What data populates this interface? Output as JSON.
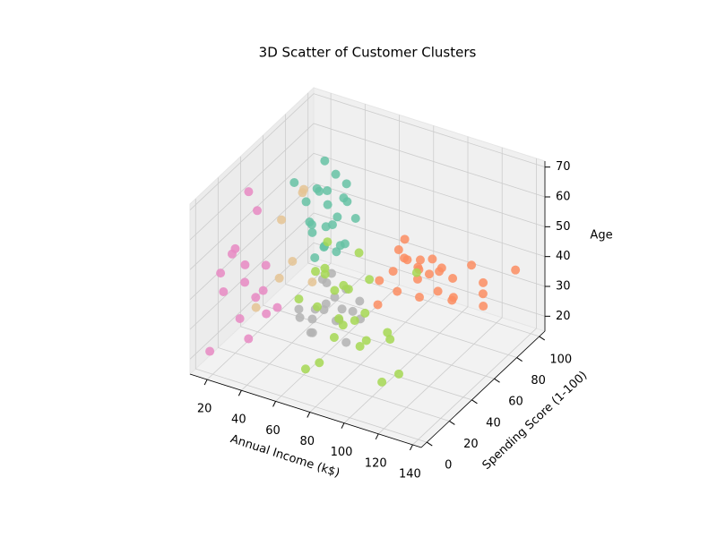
{
  "chart_data": {
    "type": "scatter3d",
    "title": "3D Scatter of Customer Clusters",
    "x_label": "Annual Income (k$)",
    "y_label": "Spending Score (1-100)",
    "z_label": "Age",
    "xlim": [
      10,
      145
    ],
    "ylim": [
      -5,
      105
    ],
    "zlim": [
      15,
      72
    ],
    "xticks": [
      20,
      40,
      60,
      80,
      100,
      120,
      140
    ],
    "yticks": [
      0,
      20,
      40,
      60,
      80,
      100
    ],
    "zticks": [
      20,
      30,
      40,
      50,
      60,
      70
    ],
    "grid": true,
    "series": [
      {
        "color": "#e78ac3",
        "x": [
          15,
          16,
          18,
          19,
          20,
          21,
          23,
          24,
          25,
          28,
          28,
          29,
          30,
          33,
          35,
          38
        ],
        "y": [
          5,
          38,
          10,
          30,
          20,
          8,
          35,
          18,
          40,
          5,
          26,
          15,
          32,
          12,
          22,
          30
        ],
        "z": [
          20,
          62,
          45,
          35,
          50,
          40,
          58,
          28,
          22,
          55,
          33,
          48,
          42,
          25,
          38,
          30
        ]
      },
      {
        "color": "#66c2a5",
        "x": [
          40,
          42,
          43,
          45,
          46,
          47,
          48,
          48,
          50,
          51,
          52,
          54,
          54,
          55,
          57,
          58,
          59,
          60,
          61,
          62,
          63,
          64,
          65,
          67
        ],
        "y": [
          42,
          55,
          48,
          50,
          60,
          45,
          52,
          58,
          47,
          55,
          42,
          50,
          59,
          46,
          53,
          41,
          57,
          49,
          44,
          55,
          48,
          60,
          51,
          46
        ],
        "z": [
          68,
          47,
          60,
          52,
          70,
          55,
          63,
          49,
          66,
          58,
          45,
          65,
          53,
          48,
          70,
          50,
          61,
          46,
          57,
          67,
          49,
          54,
          63,
          51
        ]
      },
      {
        "color": "#fc8d62",
        "x": [
          70,
          73,
          75,
          76,
          78,
          78,
          80,
          82,
          85,
          86,
          87,
          88,
          90,
          93,
          95,
          97,
          98,
          101,
          103,
          106,
          110,
          115,
          120,
          126,
          130,
          137
        ],
        "y": [
          72,
          90,
          63,
          85,
          77,
          95,
          69,
          88,
          74,
          92,
          62,
          81,
          97,
          71,
          86,
          78,
          65,
          90,
          75,
          83,
          93,
          68,
          88,
          79,
          73,
          91
        ],
        "z": [
          30,
          38,
          26,
          34,
          40,
          27,
          36,
          31,
          39,
          28,
          33,
          37,
          29,
          35,
          26,
          40,
          32,
          30,
          38,
          27,
          35,
          33,
          29,
          37,
          32,
          39
        ]
      },
      {
        "color": "#a6d854",
        "x": [
          60,
          62,
          64,
          65,
          67,
          70,
          71,
          73,
          75,
          76,
          78,
          79,
          80,
          81,
          85,
          87,
          88,
          93,
          97,
          99,
          101,
          103,
          113,
          120,
          126
        ],
        "y": [
          39,
          29,
          35,
          14,
          5,
          36,
          22,
          40,
          11,
          31,
          3,
          26,
          17,
          38,
          9,
          28,
          33,
          15,
          22,
          35,
          12,
          24,
          16,
          29,
          4
        ],
        "z": [
          42,
          35,
          55,
          20,
          47,
          30,
          52,
          39,
          25,
          44,
          59,
          33,
          48,
          22,
          36,
          58,
          27,
          41,
          53,
          31,
          46,
          19,
          38,
          57,
          33
        ]
      },
      {
        "color": "#b3b3b3",
        "x": [
          40,
          42,
          44,
          46,
          47,
          49,
          50,
          52,
          54,
          55,
          57,
          58,
          60,
          61,
          63,
          65,
          67,
          69,
          71,
          74
        ],
        "y": [
          47,
          55,
          40,
          58,
          50,
          43,
          60,
          52,
          37,
          48,
          56,
          41,
          54,
          46,
          59,
          50,
          38,
          44,
          53,
          49
        ],
        "z": [
          21,
          18,
          27,
          31,
          24,
          19,
          33,
          26,
          22,
          35,
          20,
          29,
          25,
          32,
          23,
          34,
          28,
          19,
          30,
          26
        ]
      },
      {
        "color": "#e5c494",
        "x": [
          19,
          24,
          28,
          33,
          37,
          39,
          40
        ],
        "y": [
          40,
          55,
          47,
          60,
          45,
          52,
          58
        ],
        "z": [
          23,
          48,
          32,
          57,
          40,
          62,
          29
        ]
      }
    ]
  }
}
